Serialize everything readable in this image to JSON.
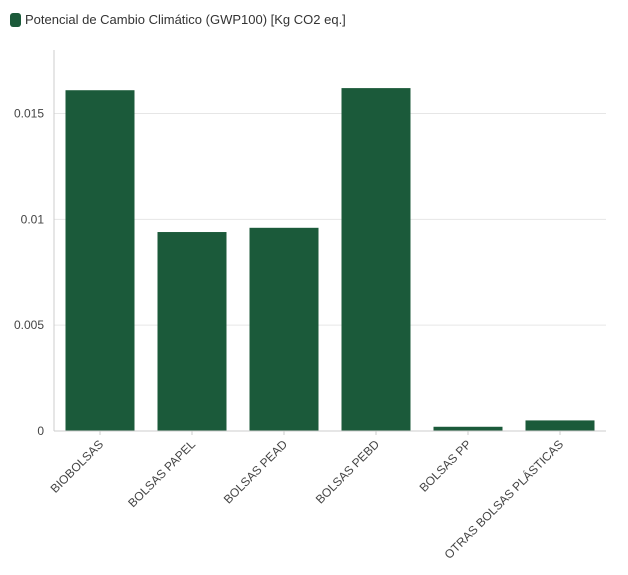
{
  "legend": {
    "label": "Potencial de Cambio Climático (GWP100) [Kg CO2 eq.]"
  },
  "colors": {
    "bar": "#1b5a3a",
    "grid": "#e6e6e6",
    "axis": "#cccccc"
  },
  "chart_data": {
    "type": "bar",
    "categories": [
      "BIOBOLSAS",
      "BOLSAS PAPEL",
      "BOLSAS PEAD",
      "BOLSAS PEBD",
      "BOLSAS PP",
      "OTRAS BOLSAS PLÁSTICAS"
    ],
    "series": [
      {
        "name": "Potencial de Cambio Climático (GWP100) [Kg CO2 eq.]",
        "values": [
          0.0161,
          0.0094,
          0.0096,
          0.0162,
          0.0002,
          0.0005
        ]
      }
    ],
    "yticks": [
      0,
      0.005,
      0.01,
      0.015
    ],
    "ytick_labels": [
      "0",
      "0.005",
      "0.01",
      "0.015"
    ],
    "ylim": [
      0,
      0.018
    ],
    "grid": true,
    "legend_position": "top-left"
  }
}
